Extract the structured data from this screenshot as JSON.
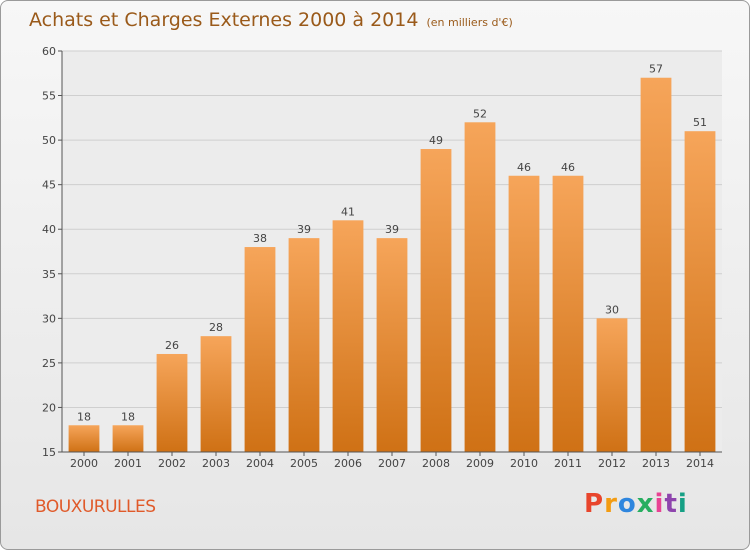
{
  "chart_data": {
    "type": "bar",
    "title": "Achats et Charges Externes 2000 à 2014",
    "subtitle": "(en milliers d'€)",
    "categories": [
      "2000",
      "2001",
      "2002",
      "2003",
      "2004",
      "2005",
      "2006",
      "2007",
      "2008",
      "2009",
      "2010",
      "2011",
      "2012",
      "2013",
      "2014"
    ],
    "values": [
      18,
      18,
      26,
      28,
      38,
      39,
      41,
      39,
      49,
      52,
      46,
      46,
      30,
      57,
      51
    ],
    "ylim": [
      15,
      60
    ],
    "yticks": [
      15,
      20,
      25,
      30,
      35,
      40,
      45,
      50,
      55,
      60
    ],
    "grid": true,
    "data_labels": true,
    "bar_color_top": "#f6a55a",
    "bar_color_bottom": "#cf7115"
  },
  "footer": {
    "place": "BOUXURULLES",
    "logo_text": "Proxiti",
    "logo_colors": [
      "#e8452c",
      "#f39c12",
      "#2e86de",
      "#27ae60",
      "#e84393",
      "#8e44ad",
      "#16a085"
    ]
  }
}
